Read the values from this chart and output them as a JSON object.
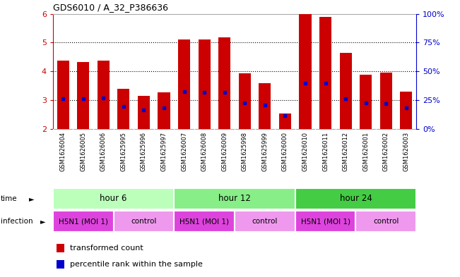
{
  "title": "GDS6010 / A_32_P386636",
  "samples": [
    "GSM1626004",
    "GSM1626005",
    "GSM1626006",
    "GSM1625995",
    "GSM1625996",
    "GSM1625997",
    "GSM1626007",
    "GSM1626008",
    "GSM1626009",
    "GSM1625998",
    "GSM1625999",
    "GSM1626000",
    "GSM1626010",
    "GSM1626011",
    "GSM1626012",
    "GSM1626001",
    "GSM1626002",
    "GSM1626003"
  ],
  "bar_heights": [
    4.38,
    4.32,
    4.38,
    3.38,
    3.15,
    3.28,
    5.12,
    5.12,
    5.18,
    3.92,
    3.6,
    2.53,
    5.98,
    5.9,
    4.65,
    3.88,
    3.96,
    3.3
  ],
  "blue_dot_y": [
    3.06,
    3.06,
    3.08,
    2.78,
    2.65,
    2.72,
    3.3,
    3.28,
    3.28,
    2.9,
    2.83,
    2.47,
    3.58,
    3.58,
    3.06,
    2.9,
    2.88,
    2.72
  ],
  "ylim": [
    2.0,
    6.0
  ],
  "yticks_left": [
    2,
    3,
    4,
    5,
    6
  ],
  "bar_color": "#cc0000",
  "dot_color": "#0000cc",
  "bar_width": 0.6,
  "time_colors": [
    "#bbffbb",
    "#88ee88",
    "#44cc44"
  ],
  "time_groups": [
    {
      "label": "hour 6",
      "start": 0,
      "end": 6
    },
    {
      "label": "hour 12",
      "start": 6,
      "end": 12
    },
    {
      "label": "hour 24",
      "start": 12,
      "end": 18
    }
  ],
  "infections": [
    {
      "label": "H5N1 (MOI 1)",
      "start": 0,
      "end": 3,
      "h5n1": true
    },
    {
      "label": "control",
      "start": 3,
      "end": 6,
      "h5n1": false
    },
    {
      "label": "H5N1 (MOI 1)",
      "start": 6,
      "end": 9,
      "h5n1": true
    },
    {
      "label": "control",
      "start": 9,
      "end": 12,
      "h5n1": false
    },
    {
      "label": "H5N1 (MOI 1)",
      "start": 12,
      "end": 15,
      "h5n1": true
    },
    {
      "label": "control",
      "start": 15,
      "end": 18,
      "h5n1": false
    }
  ],
  "inf_color_h5n1": "#dd44dd",
  "inf_color_control": "#ee99ee",
  "tick_color_left": "#cc0000",
  "tick_color_right": "#0000cc",
  "legend_bar_label": "transformed count",
  "legend_dot_label": "percentile rank within the sample"
}
